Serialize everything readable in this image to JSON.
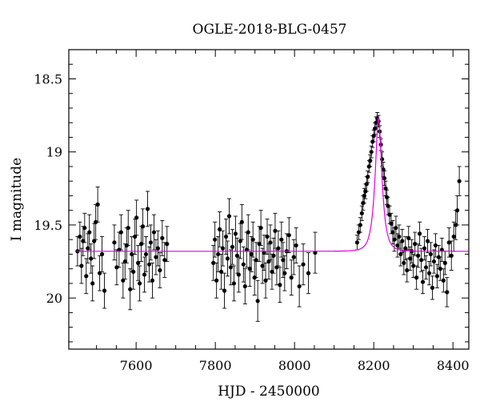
{
  "chart_data": {
    "type": "scatter",
    "title": "OGLE-2018-BLG-0457",
    "xlabel": "HJD - 2450000",
    "ylabel": "I magnitude",
    "xlim": [
      7430,
      8440
    ],
    "ylim": [
      20.35,
      18.3
    ],
    "y_inverted": true,
    "xticks": [
      7600,
      7800,
      8000,
      8200,
      8400
    ],
    "xtick_labels": [
      "7600",
      "7800",
      "8000",
      "8200",
      "8400"
    ],
    "yticks": [
      18.5,
      19,
      19.5,
      20
    ],
    "ytick_labels": [
      "18.5",
      "19",
      "19.5",
      "20"
    ],
    "grid": false,
    "legend": "none",
    "series": [
      {
        "kind": "points_with_errorbars",
        "color": "#000000",
        "points": [
          [
            7452,
            19.68,
            0.1
          ],
          [
            7458,
            19.58,
            0.1
          ],
          [
            7462,
            19.78,
            0.12
          ],
          [
            7466,
            19.61,
            0.1
          ],
          [
            7470,
            19.52,
            0.1
          ],
          [
            7474,
            19.85,
            0.12
          ],
          [
            7478,
            19.66,
            0.1
          ],
          [
            7482,
            19.55,
            0.12
          ],
          [
            7486,
            19.73,
            0.1
          ],
          [
            7490,
            19.9,
            0.12
          ],
          [
            7494,
            19.61,
            0.12
          ],
          [
            7498,
            19.48,
            0.12
          ],
          [
            7503,
            19.36,
            0.12
          ],
          [
            7508,
            19.83,
            0.12
          ],
          [
            7514,
            19.7,
            0.12
          ],
          [
            7520,
            19.95,
            0.12
          ],
          [
            7545,
            19.62,
            0.12
          ],
          [
            7551,
            19.79,
            0.12
          ],
          [
            7557,
            19.67,
            0.12
          ],
          [
            7562,
            19.55,
            0.12
          ],
          [
            7567,
            19.88,
            0.12
          ],
          [
            7572,
            19.75,
            0.12
          ],
          [
            7576,
            19.64,
            0.12
          ],
          [
            7580,
            19.52,
            0.12
          ],
          [
            7585,
            19.94,
            0.14
          ],
          [
            7589,
            19.7,
            0.12
          ],
          [
            7593,
            19.82,
            0.12
          ],
          [
            7597,
            19.58,
            0.12
          ],
          [
            7601,
            19.45,
            0.12
          ],
          [
            7605,
            19.76,
            0.12
          ],
          [
            7609,
            19.9,
            0.12
          ],
          [
            7613,
            19.63,
            0.12
          ],
          [
            7617,
            19.51,
            0.12
          ],
          [
            7621,
            19.84,
            0.12
          ],
          [
            7625,
            19.7,
            0.12
          ],
          [
            7629,
            19.39,
            0.12
          ],
          [
            7633,
            19.77,
            0.12
          ],
          [
            7637,
            19.62,
            0.12
          ],
          [
            7641,
            19.88,
            0.12
          ],
          [
            7645,
            19.55,
            0.12
          ],
          [
            7650,
            19.72,
            0.12
          ],
          [
            7655,
            19.66,
            0.12
          ],
          [
            7660,
            19.81,
            0.12
          ],
          [
            7666,
            19.59,
            0.12
          ],
          [
            7672,
            19.74,
            0.12
          ],
          [
            7678,
            19.63,
            0.12
          ],
          [
            7795,
            19.76,
            0.12
          ],
          [
            7799,
            19.6,
            0.12
          ],
          [
            7803,
            19.88,
            0.12
          ],
          [
            7807,
            19.7,
            0.12
          ],
          [
            7811,
            19.53,
            0.12
          ],
          [
            7815,
            19.82,
            0.12
          ],
          [
            7819,
            19.66,
            0.12
          ],
          [
            7823,
            19.95,
            0.12
          ],
          [
            7827,
            19.58,
            0.12
          ],
          [
            7831,
            19.73,
            0.12
          ],
          [
            7835,
            19.44,
            0.12
          ],
          [
            7839,
            19.79,
            0.12
          ],
          [
            7843,
            19.65,
            0.12
          ],
          [
            7847,
            19.9,
            0.12
          ],
          [
            7851,
            19.56,
            0.12
          ],
          [
            7855,
            19.71,
            0.12
          ],
          [
            7859,
            19.84,
            0.12
          ],
          [
            7863,
            19.61,
            0.12
          ],
          [
            7867,
            19.48,
            0.12
          ],
          [
            7871,
            19.77,
            0.12
          ],
          [
            7875,
            19.92,
            0.12
          ],
          [
            7879,
            19.67,
            0.12
          ],
          [
            7883,
            19.55,
            0.12
          ],
          [
            7887,
            19.8,
            0.12
          ],
          [
            7891,
            19.7,
            0.12
          ],
          [
            7895,
            19.6,
            0.12
          ],
          [
            7899,
            19.86,
            0.12
          ],
          [
            7903,
            19.74,
            0.12
          ],
          [
            7907,
            20.02,
            0.14
          ],
          [
            7911,
            19.63,
            0.12
          ],
          [
            7915,
            19.52,
            0.12
          ],
          [
            7919,
            19.78,
            0.12
          ],
          [
            7923,
            19.69,
            0.12
          ],
          [
            7927,
            19.88,
            0.12
          ],
          [
            7931,
            19.58,
            0.12
          ],
          [
            7935,
            19.75,
            0.12
          ],
          [
            7939,
            19.62,
            0.12
          ],
          [
            7943,
            19.82,
            0.12
          ],
          [
            7947,
            19.71,
            0.12
          ],
          [
            7951,
            19.54,
            0.12
          ],
          [
            7955,
            19.79,
            0.12
          ],
          [
            7959,
            19.66,
            0.12
          ],
          [
            7963,
            19.91,
            0.12
          ],
          [
            7967,
            19.6,
            0.12
          ],
          [
            7971,
            19.74,
            0.12
          ],
          [
            7975,
            19.83,
            0.12
          ],
          [
            7980,
            19.68,
            0.12
          ],
          [
            7986,
            19.57,
            0.12
          ],
          [
            7992,
            19.86,
            0.12
          ],
          [
            7998,
            19.72,
            0.12
          ],
          [
            8004,
            19.64,
            0.12
          ],
          [
            8012,
            19.92,
            0.14
          ],
          [
            8022,
            19.77,
            0.14
          ],
          [
            8035,
            19.83,
            0.14
          ],
          [
            8052,
            19.69,
            0.14
          ],
          [
            8158,
            19.62,
            0.05
          ],
          [
            8162,
            19.55,
            0.05
          ],
          [
            8166,
            19.5,
            0.05
          ],
          [
            8170,
            19.42,
            0.05
          ],
          [
            8173,
            19.35,
            0.05
          ],
          [
            8176,
            19.3,
            0.05
          ],
          [
            8179,
            19.27,
            0.05
          ],
          [
            8182,
            19.22,
            0.05
          ],
          [
            8185,
            19.17,
            0.04
          ],
          [
            8188,
            19.1,
            0.04
          ],
          [
            8191,
            19.06,
            0.04
          ],
          [
            8194,
            19.0,
            0.04
          ],
          [
            8197,
            18.93,
            0.04
          ],
          [
            8200,
            18.89,
            0.04
          ],
          [
            8203,
            18.84,
            0.04
          ],
          [
            8206,
            18.8,
            0.04
          ],
          [
            8209,
            18.77,
            0.04
          ],
          [
            8212,
            18.79,
            0.04
          ],
          [
            8215,
            18.86,
            0.04
          ],
          [
            8218,
            18.95,
            0.04
          ],
          [
            8221,
            19.05,
            0.05
          ],
          [
            8224,
            19.12,
            0.05
          ],
          [
            8227,
            19.18,
            0.05
          ],
          [
            8230,
            19.25,
            0.05
          ],
          [
            8233,
            19.31,
            0.05
          ],
          [
            8236,
            19.37,
            0.06
          ],
          [
            8240,
            19.43,
            0.06
          ],
          [
            8244,
            19.49,
            0.07
          ],
          [
            8248,
            19.55,
            0.08
          ],
          [
            8252,
            19.6,
            0.08
          ],
          [
            8256,
            19.52,
            0.08
          ],
          [
            8260,
            19.64,
            0.08
          ],
          [
            8264,
            19.58,
            0.08
          ],
          [
            8268,
            19.7,
            0.08
          ],
          [
            8272,
            19.61,
            0.08
          ],
          [
            8276,
            19.76,
            0.08
          ],
          [
            8280,
            19.66,
            0.08
          ],
          [
            8284,
            19.81,
            0.08
          ],
          [
            8288,
            19.59,
            0.08
          ],
          [
            8292,
            19.73,
            0.08
          ],
          [
            8296,
            19.68,
            0.08
          ],
          [
            8300,
            19.78,
            0.08
          ],
          [
            8304,
            19.63,
            0.08
          ],
          [
            8308,
            19.86,
            0.08
          ],
          [
            8312,
            19.71,
            0.08
          ],
          [
            8316,
            19.56,
            0.08
          ],
          [
            8320,
            19.74,
            0.08
          ],
          [
            8324,
            19.89,
            0.08
          ],
          [
            8328,
            19.66,
            0.08
          ],
          [
            8332,
            19.79,
            0.08
          ],
          [
            8336,
            19.61,
            0.08
          ],
          [
            8340,
            19.83,
            0.08
          ],
          [
            8344,
            19.7,
            0.08
          ],
          [
            8348,
            19.93,
            0.08
          ],
          [
            8352,
            19.75,
            0.08
          ],
          [
            8356,
            19.64,
            0.08
          ],
          [
            8360,
            19.85,
            0.08
          ],
          [
            8364,
            19.72,
            0.08
          ],
          [
            8368,
            19.8,
            0.08
          ],
          [
            8372,
            19.67,
            0.08
          ],
          [
            8376,
            19.88,
            0.08
          ],
          [
            8380,
            19.76,
            0.08
          ],
          [
            8385,
            19.96,
            0.1
          ],
          [
            8390,
            19.62,
            0.1
          ],
          [
            8396,
            19.71,
            0.1
          ],
          [
            8402,
            19.58,
            0.1
          ],
          [
            8407,
            19.5,
            0.1
          ],
          [
            8411,
            19.4,
            0.1
          ],
          [
            8416,
            19.2,
            0.1
          ]
        ]
      },
      {
        "kind": "model_curve",
        "color": "#e000e0",
        "baseline": 19.68,
        "peak_time": 8212,
        "peak_mag": 18.77,
        "timescale": 15
      }
    ]
  }
}
